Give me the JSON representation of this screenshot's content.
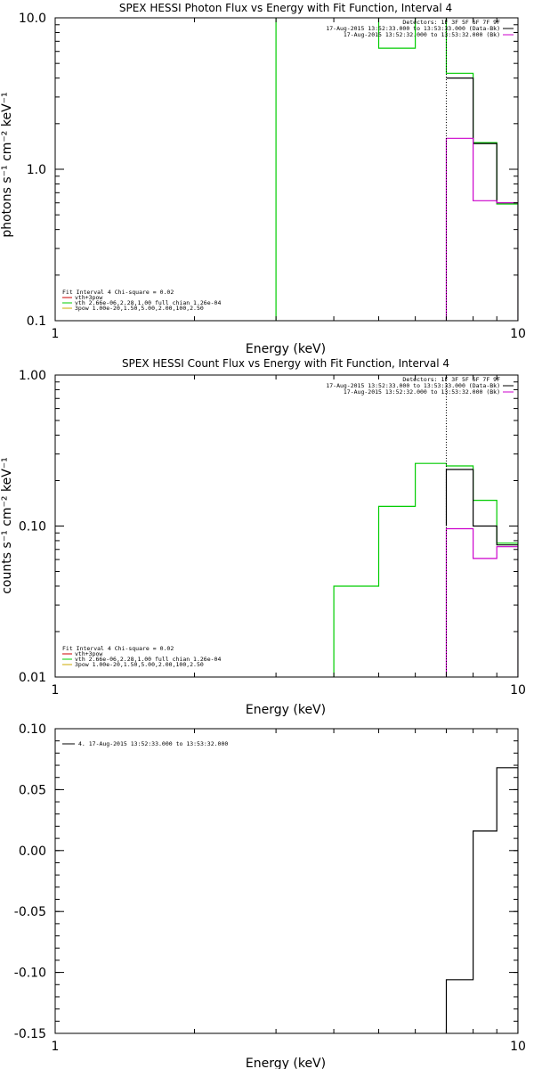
{
  "chart_data": [
    {
      "type": "line",
      "title": "SPEX HESSI Photon Flux vs Energy with Fit Function, Interval 4",
      "xlabel": "Energy (keV)",
      "ylabel": "photons s⁻¹ cm⁻² keV⁻¹",
      "xscale": "log",
      "yscale": "log",
      "xlim": [
        1,
        10
      ],
      "ylim": [
        0.1,
        10
      ],
      "x_ticks": [
        1,
        10
      ],
      "x_tick_labels": [
        "1",
        "10"
      ],
      "y_ticks": [
        0.1,
        1,
        10
      ],
      "y_tick_labels": [
        "0.1",
        "1.0",
        "10.0"
      ],
      "info": [
        "Detectors: 1F 3F 5F 6F 7F 9F",
        "17-Aug-2015 13:52:33.000 to 13:53:33.000 (Data-Bk)",
        "17-Aug-2015 13:52:32.000 to 13:53:32.000 (Bk)"
      ],
      "info_colors": [
        "#000000",
        "#000000",
        "#cc00cc"
      ],
      "fit_info": [
        "Fit Interval 4   Chi-square = 0.02",
        "vth+3pow",
        "vth 2.66e-06,2.28,1.00  full chian 1.26e-04",
        "3pow 1.00e-20,1.50,5.00,2.00,100,2.50"
      ],
      "fit_info_colors": [
        "#000000",
        "#cc0000",
        "#00cc00",
        "#ccaa00"
      ],
      "vline_x": 7.0,
      "series": [
        {
          "color": "#00cc00",
          "type": "step",
          "points": [
            [
              3.0,
              0.1
            ],
            [
              3.0,
              12
            ],
            [
              5.0,
              12
            ],
            [
              5.0,
              6.3
            ],
            [
              6.0,
              6.3
            ],
            [
              6.0,
              12
            ],
            [
              7.0,
              12
            ],
            [
              7.0,
              4.3
            ],
            [
              8.0,
              4.3
            ],
            [
              8.0,
              1.5
            ],
            [
              9.0,
              1.5
            ],
            [
              9.0,
              0.59
            ],
            [
              10.0,
              0.59
            ],
            [
              10.0,
              0.1
            ]
          ]
        },
        {
          "color": "#000000",
          "type": "step",
          "points": [
            [
              7.0,
              4.0
            ],
            [
              8.0,
              4.0
            ],
            [
              8.0,
              1.48
            ],
            [
              9.0,
              1.48
            ],
            [
              9.0,
              0.6
            ],
            [
              10.0,
              0.6
            ]
          ]
        },
        {
          "color": "#cc00cc",
          "type": "step",
          "points": [
            [
              7.0,
              0.1
            ],
            [
              7.0,
              1.6
            ],
            [
              8.0,
              1.6
            ],
            [
              8.0,
              0.62
            ],
            [
              9.0,
              0.62
            ],
            [
              9.0,
              0.6
            ],
            [
              10.0,
              0.6
            ],
            [
              10.0,
              0.1
            ]
          ]
        }
      ]
    },
    {
      "type": "line",
      "title": "SPEX HESSI Count Flux vs Energy with Fit Function, Interval 4",
      "xlabel": "Energy (keV)",
      "ylabel": "counts s⁻¹ cm⁻² keV⁻¹",
      "xscale": "log",
      "yscale": "log",
      "xlim": [
        1,
        10
      ],
      "ylim": [
        0.01,
        1
      ],
      "x_ticks": [
        1,
        10
      ],
      "x_tick_labels": [
        "1",
        "10"
      ],
      "y_ticks": [
        0.01,
        0.1,
        1
      ],
      "y_tick_labels": [
        "0.01",
        "0.10",
        "1.00"
      ],
      "info": [
        "Detectors: 1F 3F 5F 6F 7F 9F",
        "17-Aug-2015 13:52:33.000 to 13:53:33.000 (Data-Bk)",
        "17-Aug-2015 13:52:32.000 to 13:53:32.000 (Bk)"
      ],
      "info_colors": [
        "#000000",
        "#000000",
        "#cc00cc"
      ],
      "fit_info": [
        "Fit Interval 4   Chi-square = 0.02",
        "vth+3pow",
        "vth 2.66e-06,2.28,1.00  full chian 1.26e-04",
        "3pow 1.00e-20,1.50,5.00,2.00,100,2.50"
      ],
      "fit_info_colors": [
        "#000000",
        "#cc0000",
        "#00cc00",
        "#ccaa00"
      ],
      "vline_x": 7.0,
      "series": [
        {
          "color": "#00cc00",
          "type": "step",
          "points": [
            [
              4.0,
              0.01
            ],
            [
              4.0,
              0.04
            ],
            [
              5.0,
              0.04
            ],
            [
              5.0,
              0.135
            ],
            [
              6.0,
              0.135
            ],
            [
              6.0,
              0.26
            ],
            [
              7.0,
              0.26
            ],
            [
              7.0,
              0.25
            ],
            [
              8.0,
              0.25
            ],
            [
              8.0,
              0.148
            ],
            [
              9.0,
              0.148
            ],
            [
              9.0,
              0.077
            ],
            [
              10.0,
              0.077
            ],
            [
              10.0,
              0.01
            ]
          ]
        },
        {
          "color": "#000000",
          "type": "step",
          "points": [
            [
              7.0,
              0.1
            ],
            [
              7.0,
              0.237
            ],
            [
              8.0,
              0.237
            ],
            [
              8.0,
              0.1
            ],
            [
              9.0,
              0.1
            ],
            [
              9.0,
              0.075
            ],
            [
              10.0,
              0.075
            ]
          ]
        },
        {
          "color": "#cc00cc",
          "type": "step",
          "points": [
            [
              7.0,
              0.01
            ],
            [
              7.0,
              0.096
            ],
            [
              8.0,
              0.096
            ],
            [
              8.0,
              0.061
            ],
            [
              9.0,
              0.061
            ],
            [
              9.0,
              0.073
            ],
            [
              10.0,
              0.073
            ],
            [
              10.0,
              0.01
            ]
          ]
        }
      ]
    },
    {
      "type": "line",
      "title": "",
      "xlabel": "Energy (keV)",
      "ylabel": "",
      "xscale": "log",
      "yscale": "linear",
      "xlim": [
        1,
        10
      ],
      "ylim": [
        -0.15,
        0.1
      ],
      "x_ticks": [
        1,
        10
      ],
      "x_tick_labels": [
        "1",
        "10"
      ],
      "y_ticks": [
        -0.15,
        -0.1,
        -0.05,
        0.0,
        0.05,
        0.1
      ],
      "y_tick_labels": [
        "-0.15",
        "-0.10",
        "-0.05",
        "0.00",
        "0.05",
        "0.10"
      ],
      "legend": "4. 17-Aug-2015 13:52:33.000 to 13:53:32.000",
      "series": [
        {
          "color": "#000000",
          "type": "step",
          "points": [
            [
              7.0,
              -0.15
            ],
            [
              7.0,
              -0.106
            ],
            [
              8.0,
              -0.106
            ],
            [
              8.0,
              0.016
            ],
            [
              9.0,
              0.016
            ],
            [
              9.0,
              0.068
            ],
            [
              10.0,
              0.068
            ],
            [
              10.0,
              -0.15
            ]
          ]
        }
      ]
    }
  ]
}
